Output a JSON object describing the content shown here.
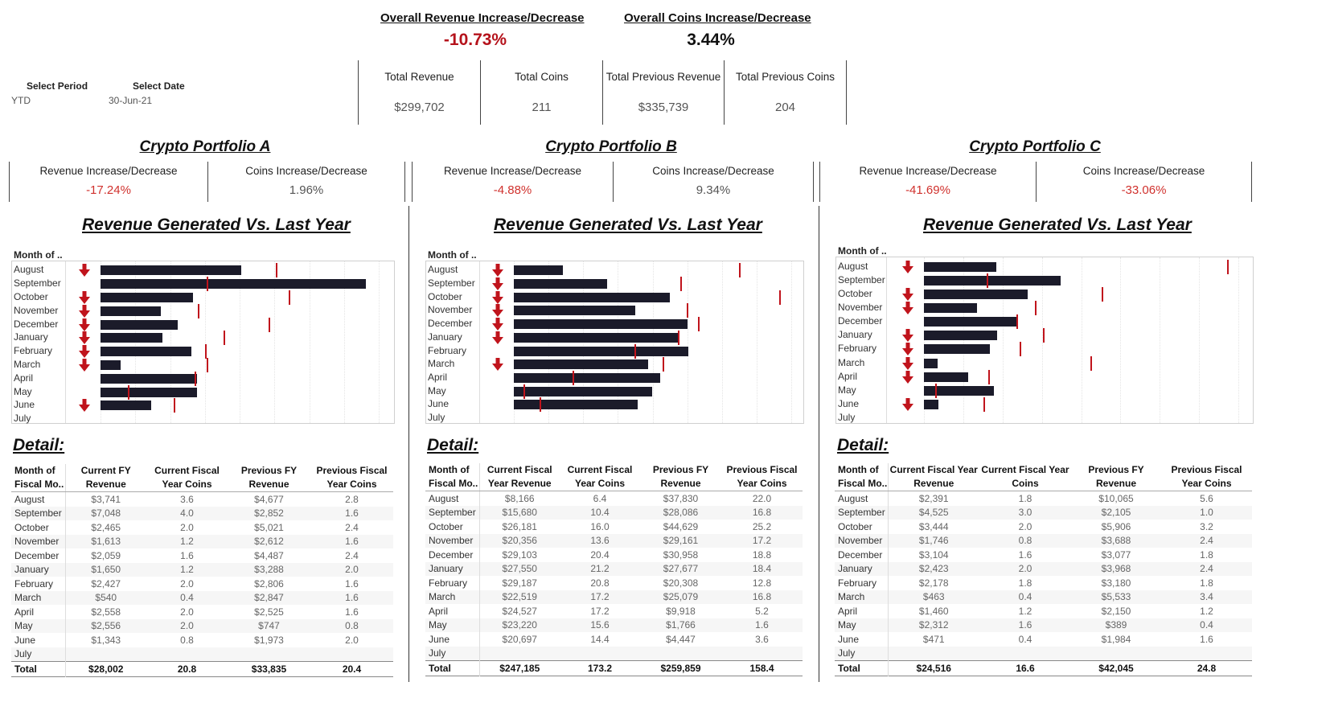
{
  "header": {
    "overall_revenue_title": "Overall Revenue Increase/Decrease",
    "overall_revenue_value": "-10.73%",
    "overall_coins_title": "Overall Coins Increase/Decrease",
    "overall_coins_value": "3.44%",
    "select_period_label": "Select Period",
    "select_period_value": "YTD",
    "select_date_label": "Select Date",
    "select_date_value": "30-Jun-21",
    "totals": [
      {
        "label": "Total Revenue",
        "value": "$299,702"
      },
      {
        "label": "Total Coins",
        "value": "211"
      },
      {
        "label": "Total Previous Revenue",
        "value": "$335,739"
      },
      {
        "label": "Total Previous Coins",
        "value": "204"
      }
    ]
  },
  "colors": {
    "negative": "#c0141c",
    "bar": "#1b1b2a",
    "reference": "#c0141c"
  },
  "icons": {
    "decrease": "arrow-down-icon"
  },
  "portfolios": [
    {
      "title": "Crypto Portfolio A",
      "rev_label": "Revenue Increase/Decrease",
      "rev_value": "-17.24%",
      "coins_label": "Coins Increase/Decrease",
      "coins_value": "1.96%",
      "chart_title": "Revenue Generated Vs. Last Year",
      "month_header": "Month of ..",
      "detail_title": "Detail:",
      "columns": [
        "Month of Fiscal Mo..",
        "Current FY Revenue",
        "Current Fiscal Year Coins",
        "Previous FY Revenue",
        "Previous Fiscal Year Coins"
      ],
      "rows": [
        [
          "August",
          "$3,741",
          "3.6",
          "$4,677",
          "2.8"
        ],
        [
          "September",
          "$7,048",
          "4.0",
          "$2,852",
          "1.6"
        ],
        [
          "October",
          "$2,465",
          "2.0",
          "$5,021",
          "2.4"
        ],
        [
          "November",
          "$1,613",
          "1.2",
          "$2,612",
          "1.6"
        ],
        [
          "December",
          "$2,059",
          "1.6",
          "$4,487",
          "2.4"
        ],
        [
          "January",
          "$1,650",
          "1.2",
          "$3,288",
          "2.0"
        ],
        [
          "February",
          "$2,427",
          "2.0",
          "$2,806",
          "1.6"
        ],
        [
          "March",
          "$540",
          "0.4",
          "$2,847",
          "1.6"
        ],
        [
          "April",
          "$2,558",
          "2.0",
          "$2,525",
          "1.6"
        ],
        [
          "May",
          "$2,556",
          "2.0",
          "$747",
          "0.8"
        ],
        [
          "June",
          "$1,343",
          "0.8",
          "$1,973",
          "2.0"
        ],
        [
          "July",
          "",
          "",
          "",
          ""
        ]
      ],
      "total": [
        "Total",
        "$28,002",
        "20.8",
        "$33,835",
        "20.4"
      ]
    },
    {
      "title": "Crypto Portfolio B",
      "rev_label": "Revenue Increase/Decrease",
      "rev_value": "-4.88%",
      "coins_label": "Coins Increase/Decrease",
      "coins_value": "9.34%",
      "chart_title": "Revenue Generated Vs. Last Year",
      "month_header": "Month of ..",
      "detail_title": "Detail:",
      "columns": [
        "Month of Fiscal Mo..",
        "Current Fiscal Year Revenue",
        "Current Fiscal Year Coins",
        "Previous FY Revenue",
        "Previous Fiscal Year Coins"
      ],
      "rows": [
        [
          "August",
          "$8,166",
          "6.4",
          "$37,830",
          "22.0"
        ],
        [
          "September",
          "$15,680",
          "10.4",
          "$28,086",
          "16.8"
        ],
        [
          "October",
          "$26,181",
          "16.0",
          "$44,629",
          "25.2"
        ],
        [
          "November",
          "$20,356",
          "13.6",
          "$29,161",
          "17.2"
        ],
        [
          "December",
          "$29,103",
          "20.4",
          "$30,958",
          "18.8"
        ],
        [
          "January",
          "$27,550",
          "21.2",
          "$27,677",
          "18.4"
        ],
        [
          "February",
          "$29,187",
          "20.8",
          "$20,308",
          "12.8"
        ],
        [
          "March",
          "$22,519",
          "17.2",
          "$25,079",
          "16.8"
        ],
        [
          "April",
          "$24,527",
          "17.2",
          "$9,918",
          "5.2"
        ],
        [
          "May",
          "$23,220",
          "15.6",
          "$1,766",
          "1.6"
        ],
        [
          "June",
          "$20,697",
          "14.4",
          "$4,447",
          "3.6"
        ],
        [
          "July",
          "",
          "",
          "",
          ""
        ]
      ],
      "total": [
        "Total",
        "$247,185",
        "173.2",
        "$259,859",
        "158.4"
      ]
    },
    {
      "title": "Crypto Portfolio C",
      "rev_label": "Revenue Increase/Decrease",
      "rev_value": "-41.69%",
      "coins_label": "Coins Increase/Decrease",
      "coins_value": "-33.06%",
      "chart_title": "Revenue Generated Vs. Last Year",
      "month_header": "Month of ..",
      "detail_title": "Detail:",
      "columns": [
        "Month of Fiscal Mo..",
        "Current Fiscal Year Revenue",
        "Current Fiscal Year Coins",
        "Previous FY Revenue",
        "Previous Fiscal Year Coins"
      ],
      "rows": [
        [
          "August",
          "$2,391",
          "1.8",
          "$10,065",
          "5.6"
        ],
        [
          "September",
          "$4,525",
          "3.0",
          "$2,105",
          "1.0"
        ],
        [
          "October",
          "$3,444",
          "2.0",
          "$5,906",
          "3.2"
        ],
        [
          "November",
          "$1,746",
          "0.8",
          "$3,688",
          "2.4"
        ],
        [
          "December",
          "$3,104",
          "1.6",
          "$3,077",
          "1.8"
        ],
        [
          "January",
          "$2,423",
          "2.0",
          "$3,968",
          "2.4"
        ],
        [
          "February",
          "$2,178",
          "1.8",
          "$3,180",
          "1.8"
        ],
        [
          "March",
          "$463",
          "0.4",
          "$5,533",
          "3.4"
        ],
        [
          "April",
          "$1,460",
          "1.2",
          "$2,150",
          "1.2"
        ],
        [
          "May",
          "$2,312",
          "1.6",
          "$389",
          "0.4"
        ],
        [
          "June",
          "$471",
          "0.4",
          "$1,984",
          "1.6"
        ],
        [
          "July",
          "",
          "",
          "",
          ""
        ]
      ],
      "total": [
        "Total",
        "$24,516",
        "16.6",
        "$42,045",
        "24.8"
      ]
    }
  ],
  "chart_data": [
    {
      "type": "bar",
      "title": "Revenue Generated Vs. Last Year",
      "categories": [
        "August",
        "September",
        "October",
        "November",
        "December",
        "January",
        "February",
        "March",
        "April",
        "May",
        "June",
        "July"
      ],
      "series": [
        {
          "name": "Current FY Revenue",
          "values": [
            3741,
            7048,
            2465,
            1613,
            2059,
            1650,
            2427,
            540,
            2558,
            2556,
            1343,
            null
          ]
        },
        {
          "name": "Previous FY Revenue",
          "values": [
            4677,
            2852,
            5021,
            2612,
            4487,
            3288,
            2806,
            2847,
            2525,
            747,
            1973,
            null
          ]
        }
      ],
      "xlim": [
        0,
        7400
      ]
    },
    {
      "type": "bar",
      "title": "Revenue Generated Vs. Last Year",
      "categories": [
        "August",
        "September",
        "October",
        "November",
        "December",
        "January",
        "February",
        "March",
        "April",
        "May",
        "June",
        "July"
      ],
      "series": [
        {
          "name": "Current Fiscal Year Revenue",
          "values": [
            8166,
            15680,
            26181,
            20356,
            29103,
            27550,
            29187,
            22519,
            24527,
            23220,
            20697,
            null
          ]
        },
        {
          "name": "Previous FY Revenue",
          "values": [
            37830,
            28086,
            44629,
            29161,
            30958,
            27677,
            20308,
            25079,
            9918,
            1766,
            4447,
            null
          ]
        }
      ],
      "xlim": [
        0,
        46500
      ]
    },
    {
      "type": "bar",
      "title": "Revenue Generated Vs. Last Year",
      "categories": [
        "August",
        "September",
        "October",
        "November",
        "December",
        "January",
        "February",
        "March",
        "April",
        "May",
        "June",
        "July"
      ],
      "series": [
        {
          "name": "Current Fiscal Year Revenue",
          "values": [
            2391,
            4525,
            3444,
            1746,
            3104,
            2423,
            2178,
            463,
            1460,
            2312,
            471,
            null
          ]
        },
        {
          "name": "Previous FY Revenue",
          "values": [
            10065,
            2105,
            5906,
            3688,
            3077,
            3968,
            3180,
            5533,
            2150,
            389,
            1984,
            null
          ]
        }
      ],
      "xlim": [
        0,
        10400
      ]
    }
  ]
}
